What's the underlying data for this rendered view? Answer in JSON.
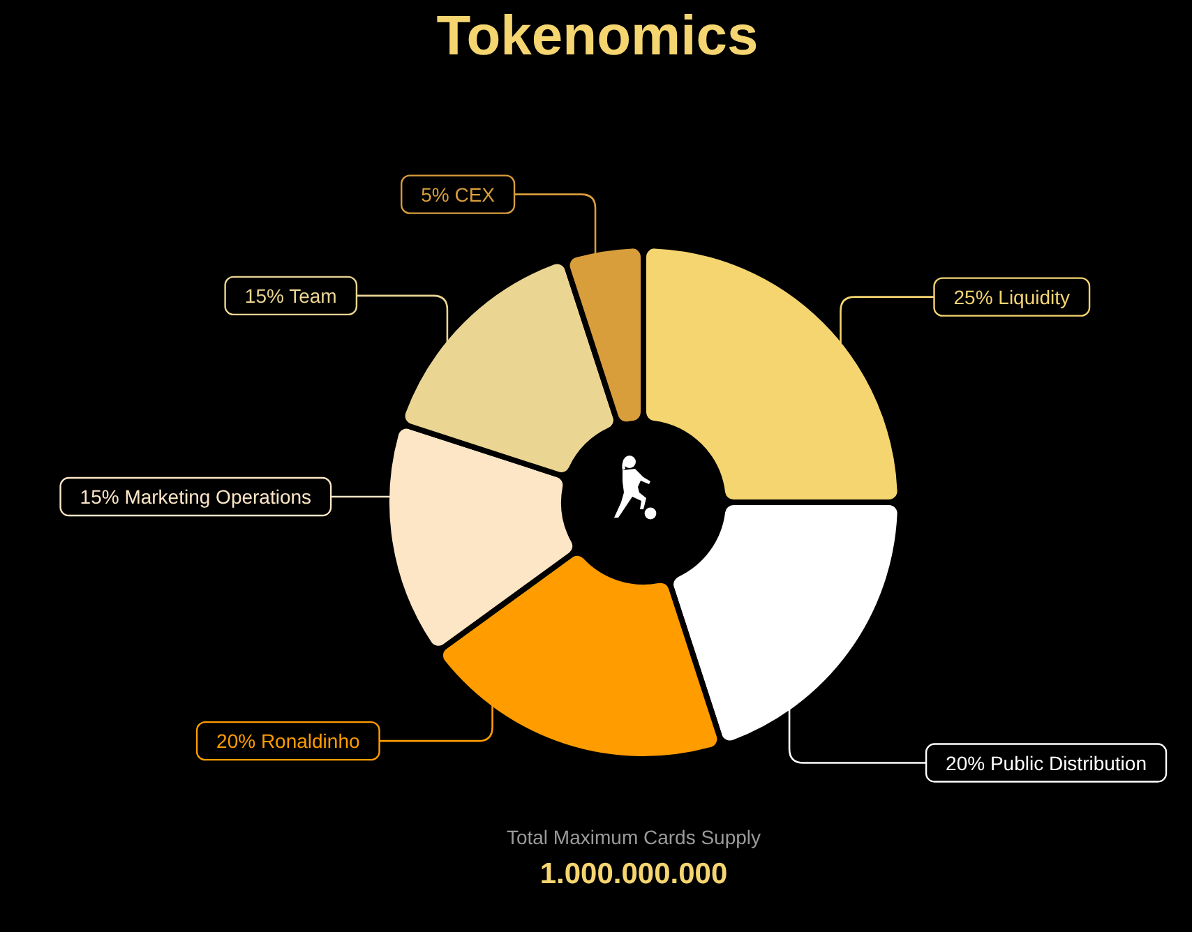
{
  "chart_data": {
    "type": "donut",
    "title": "Tokenomics",
    "categories": [
      "Liquidity",
      "Public Distribution",
      "Ronaldinho",
      "Marketing Operations",
      "Team",
      "CEX"
    ],
    "values": [
      25,
      20,
      20,
      15,
      15,
      5
    ],
    "value_labels": [
      "25%",
      "20%",
      "20%",
      "15%",
      "15%",
      "5%"
    ],
    "colors": [
      "#f5d570",
      "#ffffff",
      "#ff9c00",
      "#fde6c6",
      "#ebd593",
      "#d99e3c"
    ],
    "annotations": [
      "Total Maximum Cards Supply",
      "1.000.000.000"
    ]
  }
}
